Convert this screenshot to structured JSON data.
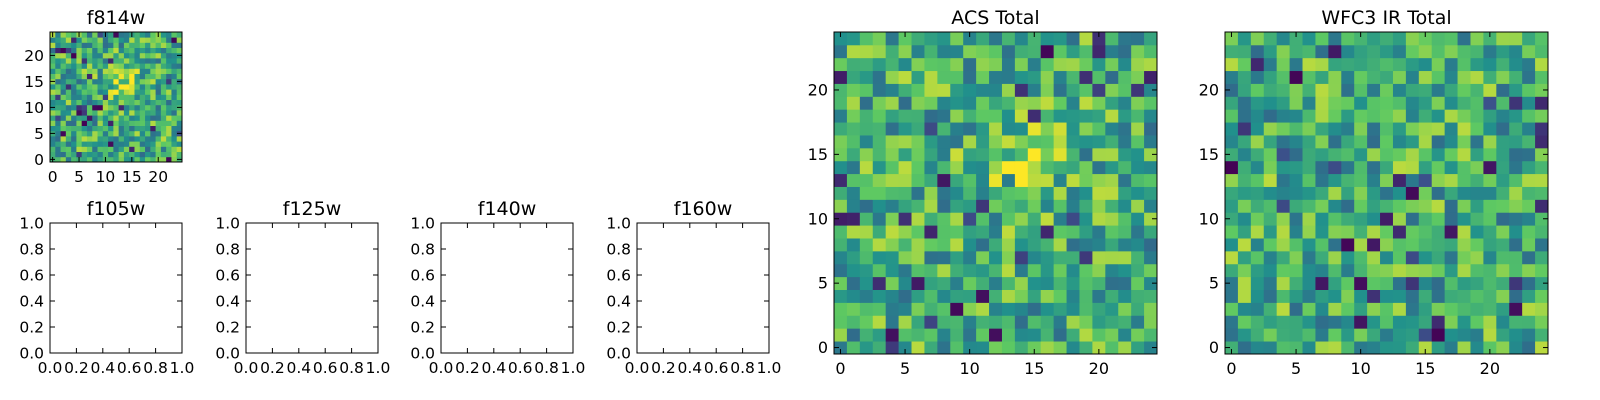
{
  "colormap": [
    "#440154",
    "#3b528b",
    "#21918c",
    "#5ec962",
    "#fde725"
  ],
  "chart_data": [
    {
      "type": "heatmap",
      "title": "f814w",
      "grid_size": 25,
      "xlim": [
        -0.5,
        24.5
      ],
      "ylim": [
        -0.5,
        24.5
      ],
      "xticks": [
        0,
        5,
        10,
        15,
        20
      ],
      "yticks": [
        0,
        5,
        10,
        15,
        20
      ],
      "xtick_labels": [
        "0",
        "5",
        "10",
        "15",
        "20"
      ],
      "ytick_labels": [
        "0",
        "5",
        "10",
        "15",
        "20"
      ],
      "seed": 11,
      "hotspot": [
        13,
        15
      ]
    },
    {
      "type": "blank",
      "title": "f105w",
      "xlim": [
        0,
        1
      ],
      "ylim": [
        0,
        1
      ],
      "xticks": [
        0,
        0.2,
        0.4,
        0.6,
        0.8,
        1.0
      ],
      "yticks": [
        0,
        0.2,
        0.4,
        0.6,
        0.8,
        1.0
      ],
      "xtick_labels": [
        "0.0",
        "0.2",
        "0.4",
        "0.6",
        "0.8",
        "1.0"
      ],
      "ytick_labels": [
        "0.0",
        "0.2",
        "0.4",
        "0.6",
        "0.8",
        "1.0"
      ]
    },
    {
      "type": "blank",
      "title": "f125w",
      "xlim": [
        0,
        1
      ],
      "ylim": [
        0,
        1
      ],
      "xticks": [
        0,
        0.2,
        0.4,
        0.6,
        0.8,
        1.0
      ],
      "yticks": [
        0,
        0.2,
        0.4,
        0.6,
        0.8,
        1.0
      ],
      "xtick_labels": [
        "0.0",
        "0.2",
        "0.4",
        "0.6",
        "0.8",
        "1.0"
      ],
      "ytick_labels": [
        "0.0",
        "0.2",
        "0.4",
        "0.6",
        "0.8",
        "1.0"
      ]
    },
    {
      "type": "blank",
      "title": "f140w",
      "xlim": [
        0,
        1
      ],
      "ylim": [
        0,
        1
      ],
      "xticks": [
        0,
        0.2,
        0.4,
        0.6,
        0.8,
        1.0
      ],
      "yticks": [
        0,
        0.2,
        0.4,
        0.6,
        0.8,
        1.0
      ],
      "xtick_labels": [
        "0.0",
        "0.2",
        "0.4",
        "0.6",
        "0.8",
        "1.0"
      ],
      "ytick_labels": [
        "0.0",
        "0.2",
        "0.4",
        "0.6",
        "0.8",
        "1.0"
      ]
    },
    {
      "type": "blank",
      "title": "f160w",
      "xlim": [
        0,
        1
      ],
      "ylim": [
        0,
        1
      ],
      "xticks": [
        0,
        0.2,
        0.4,
        0.6,
        0.8,
        1.0
      ],
      "yticks": [
        0,
        0.2,
        0.4,
        0.6,
        0.8,
        1.0
      ],
      "xtick_labels": [
        "0.0",
        "0.2",
        "0.4",
        "0.6",
        "0.8",
        "1.0"
      ],
      "ytick_labels": [
        "0.0",
        "0.2",
        "0.4",
        "0.6",
        "0.8",
        "1.0"
      ]
    },
    {
      "type": "heatmap",
      "title": "ACS Total",
      "grid_size": 25,
      "xlim": [
        -0.5,
        24.5
      ],
      "ylim": [
        -0.5,
        24.5
      ],
      "xticks": [
        0,
        5,
        10,
        15,
        20
      ],
      "yticks": [
        0,
        5,
        10,
        15,
        20
      ],
      "xtick_labels": [
        "0",
        "5",
        "10",
        "15",
        "20"
      ],
      "ytick_labels": [
        "0",
        "5",
        "10",
        "15",
        "20"
      ],
      "seed": 23,
      "hotspot": [
        14,
        14
      ]
    },
    {
      "type": "heatmap",
      "title": "WFC3 IR Total",
      "grid_size": 25,
      "xlim": [
        -0.5,
        24.5
      ],
      "ylim": [
        -0.5,
        24.5
      ],
      "xticks": [
        0,
        5,
        10,
        15,
        20
      ],
      "yticks": [
        0,
        5,
        10,
        15,
        20
      ],
      "xtick_labels": [
        "0",
        "5",
        "10",
        "15",
        "20"
      ],
      "ytick_labels": [
        "0",
        "5",
        "10",
        "15",
        "20"
      ],
      "seed": 37,
      "hotspot": null
    }
  ]
}
